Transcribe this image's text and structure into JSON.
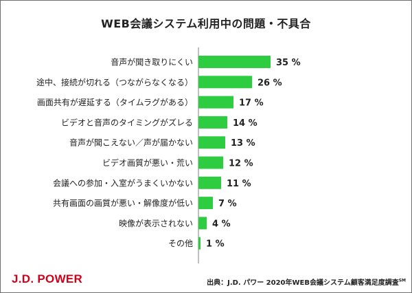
{
  "chart_data": {
    "type": "bar",
    "orientation": "horizontal",
    "title": "WEB会議システム利用中の問題・不具合",
    "categories": [
      "音声が聞き取りにくい",
      "途中、接続が切れる（つながらなくなる）",
      "画面共有が遅延する（タイムラグがある）",
      "ビデオと音声のタイミングがズレる",
      "音声が聞こえない／声が届かない",
      "ビデオ画質が悪い・荒い",
      "会議への参加・入室がうまくいかない",
      "共有画面の画質が悪い・解像度が低い",
      "映像が表示されない",
      "その他"
    ],
    "values": [
      35,
      26,
      17,
      14,
      13,
      12,
      11,
      7,
      4,
      1
    ],
    "value_labels": [
      "35 %",
      "26 %",
      "17 %",
      "14 %",
      "13 %",
      "12 %",
      "11 %",
      "7 %",
      "4 %",
      "1 %"
    ],
    "bar_color": "#2ecc40",
    "grid": false,
    "legend": "none"
  },
  "footer": {
    "logo": "J.D. POWER",
    "source": "出典：J.D. パワー 2020年WEB会議システム顧客満足度調査",
    "source_mark": "SM"
  },
  "colors": {
    "logo": "#d0021b",
    "axis": "#7f7f7f",
    "text": "#222222"
  }
}
